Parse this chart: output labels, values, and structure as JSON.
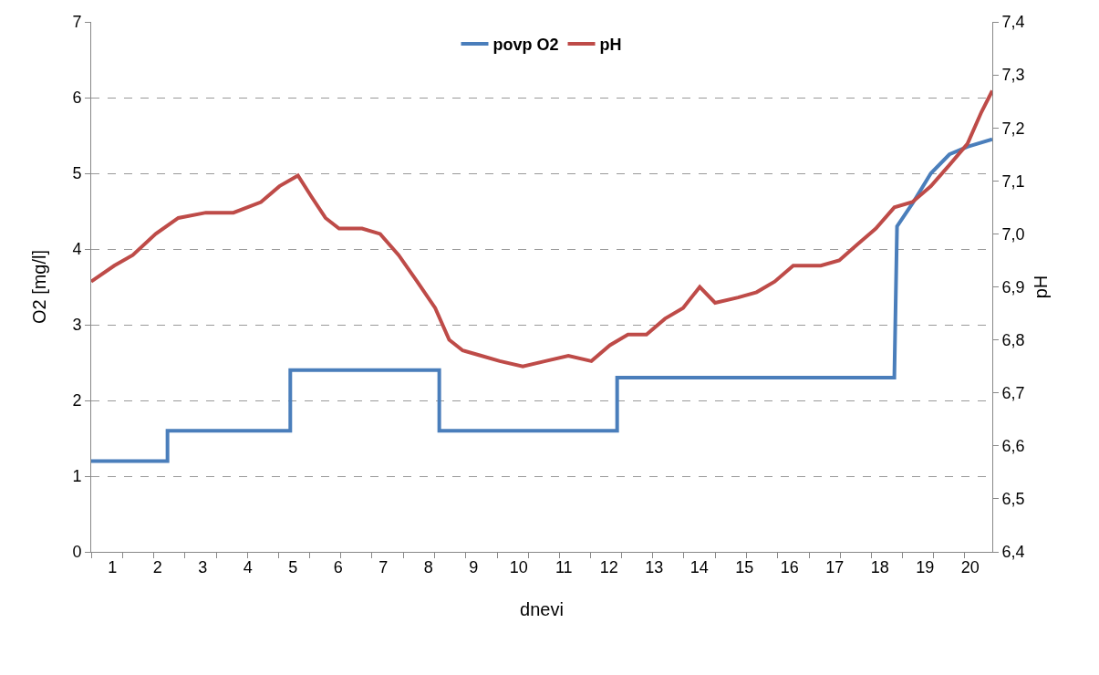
{
  "chart_data": {
    "type": "line",
    "xlabel": "dnevi",
    "ylabel": "O2 [mg/l]",
    "y2label": "pH",
    "xlim": [
      0.53,
      20.49
    ],
    "xticks": [
      {
        "value": 0.53,
        "label": null
      },
      {
        "value": 1,
        "label": "1"
      },
      {
        "value": 1.22,
        "label": null
      },
      {
        "value": 1.91,
        "label": null
      },
      {
        "value": 2,
        "label": "2"
      },
      {
        "value": 2.6,
        "label": null
      },
      {
        "value": 3,
        "label": "3"
      },
      {
        "value": 3.3,
        "label": null
      },
      {
        "value": 3.99,
        "label": null
      },
      {
        "value": 4,
        "label": "4"
      },
      {
        "value": 4.68,
        "label": null
      },
      {
        "value": 5,
        "label": "5"
      },
      {
        "value": 5.37,
        "label": null
      },
      {
        "value": 6,
        "label": "6"
      },
      {
        "value": 6.06,
        "label": null
      },
      {
        "value": 6.75,
        "label": null
      },
      {
        "value": 7,
        "label": "7"
      },
      {
        "value": 7.44,
        "label": null
      },
      {
        "value": 8,
        "label": "8"
      },
      {
        "value": 8.13,
        "label": null
      },
      {
        "value": 8.82,
        "label": null
      },
      {
        "value": 9,
        "label": "9"
      },
      {
        "value": 9.52,
        "label": null
      },
      {
        "value": 10,
        "label": "10"
      },
      {
        "value": 10.21,
        "label": null
      },
      {
        "value": 10.9,
        "label": null
      },
      {
        "value": 11,
        "label": "11"
      },
      {
        "value": 11.59,
        "label": null
      },
      {
        "value": 12,
        "label": "12"
      },
      {
        "value": 12.28,
        "label": null
      },
      {
        "value": 12.97,
        "label": null
      },
      {
        "value": 13,
        "label": "13"
      },
      {
        "value": 13.66,
        "label": null
      },
      {
        "value": 14,
        "label": "14"
      },
      {
        "value": 14.35,
        "label": null
      },
      {
        "value": 15,
        "label": "15"
      },
      {
        "value": 15.04,
        "label": null
      },
      {
        "value": 15.74,
        "label": null
      },
      {
        "value": 16,
        "label": "16"
      },
      {
        "value": 16.43,
        "label": null
      },
      {
        "value": 17,
        "label": "17"
      },
      {
        "value": 17.12,
        "label": null
      },
      {
        "value": 17.81,
        "label": null
      },
      {
        "value": 18,
        "label": "18"
      },
      {
        "value": 18.5,
        "label": null
      },
      {
        "value": 19,
        "label": "19"
      },
      {
        "value": 19.19,
        "label": null
      },
      {
        "value": 19.88,
        "label": null
      },
      {
        "value": 20,
        "label": "20"
      }
    ],
    "ylim": [
      0,
      7
    ],
    "yticks": [
      0,
      1,
      2,
      3,
      4,
      5,
      6,
      7
    ],
    "y2lim": [
      6.4,
      7.4
    ],
    "y2ticks": [
      {
        "value": 6.4,
        "label": "6,4"
      },
      {
        "value": 6.5,
        "label": "6,5"
      },
      {
        "value": 6.6,
        "label": "6,6"
      },
      {
        "value": 6.7,
        "label": "6,7"
      },
      {
        "value": 6.8,
        "label": "6,8"
      },
      {
        "value": 6.9,
        "label": "6,9"
      },
      {
        "value": 7.0,
        "label": "7,0"
      },
      {
        "value": 7.1,
        "label": "7,1"
      },
      {
        "value": 7.2,
        "label": "7,2"
      },
      {
        "value": 7.3,
        "label": "7,3"
      },
      {
        "value": 7.4,
        "label": "7,4"
      }
    ],
    "grid": "y",
    "legend": "top",
    "marker": "none",
    "line_style": "solid",
    "series": [
      {
        "name": "povp O2",
        "color": "#4a7ebb",
        "x": [
          0.53,
          2.22,
          2.22,
          4.94,
          4.94,
          8.24,
          8.24,
          12.18,
          12.18,
          18.32,
          18.38,
          18.72,
          19.13,
          19.54,
          19.94,
          20.49
        ],
        "values": [
          1.2,
          1.2,
          1.6,
          1.6,
          2.4,
          2.4,
          1.6,
          1.6,
          2.3,
          2.3,
          4.3,
          4.6,
          5.0,
          5.25,
          5.35,
          5.45
        ]
      },
      {
        "name": "pH",
        "color": "#be4b48",
        "axis": "y2",
        "x": [
          0.53,
          1.04,
          1.45,
          1.96,
          2.46,
          3.07,
          3.68,
          4.29,
          4.7,
          5.11,
          5.41,
          5.72,
          6.02,
          6.53,
          6.93,
          7.34,
          7.75,
          8.15,
          8.46,
          8.76,
          9.17,
          9.58,
          10.09,
          10.59,
          11.1,
          11.61,
          12.02,
          12.42,
          12.83,
          13.24,
          13.64,
          14.01,
          14.35,
          14.86,
          15.27,
          15.67,
          16.08,
          16.69,
          17.1,
          17.5,
          17.91,
          18.32,
          18.72,
          19.13,
          19.54,
          19.94,
          20.25,
          20.49
        ],
        "values": [
          6.91,
          6.94,
          6.96,
          7.0,
          7.03,
          7.04,
          7.04,
          7.06,
          7.09,
          7.11,
          7.07,
          7.03,
          7.01,
          7.01,
          7.0,
          6.96,
          6.91,
          6.86,
          6.8,
          6.78,
          6.77,
          6.76,
          6.75,
          6.76,
          6.77,
          6.76,
          6.79,
          6.81,
          6.81,
          6.84,
          6.86,
          6.9,
          6.87,
          6.88,
          6.89,
          6.91,
          6.94,
          6.94,
          6.95,
          6.98,
          7.01,
          7.05,
          7.06,
          7.09,
          7.13,
          7.17,
          7.23,
          7.27
        ]
      }
    ]
  }
}
